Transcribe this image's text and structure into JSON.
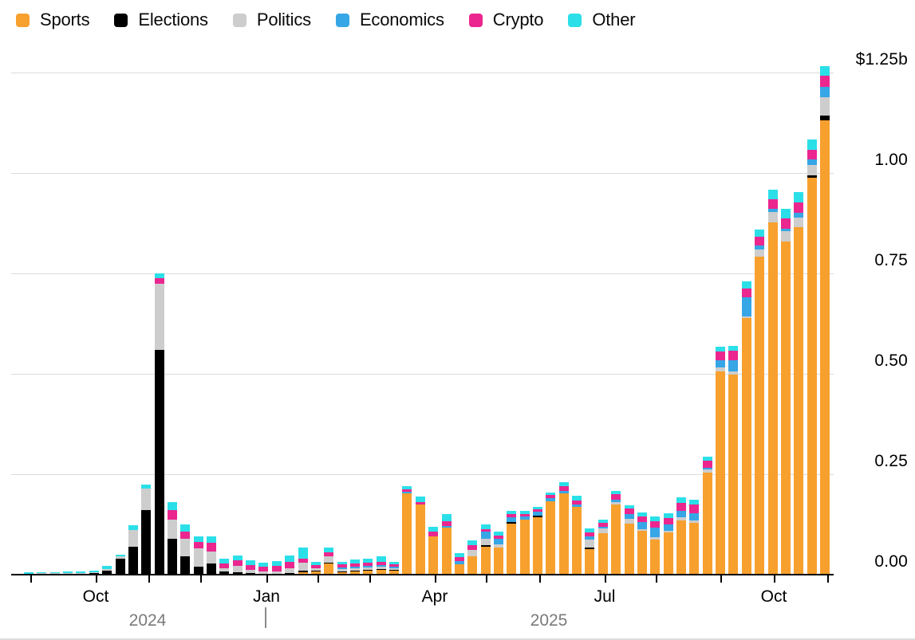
{
  "legend": {
    "items": [
      {
        "label": "Sports",
        "color": "#f7a02e"
      },
      {
        "label": "Elections",
        "color": "#000000"
      },
      {
        "label": "Politics",
        "color": "#cdcdcd"
      },
      {
        "label": "Economics",
        "color": "#36a6e6"
      },
      {
        "label": "Crypto",
        "color": "#ec268f"
      },
      {
        "label": "Other",
        "color": "#2bdfe8"
      }
    ]
  },
  "y_axis": {
    "tick_labels": [
      "$1.25b",
      "1.00",
      "0.75",
      "0.50",
      "0.25",
      "0.00"
    ]
  },
  "x_axis": {
    "month_labels": [
      "Oct",
      "Jan",
      "Apr",
      "Jul",
      "Oct"
    ],
    "year_labels": [
      "2024",
      "2025"
    ],
    "separator": "|"
  },
  "chart_data": {
    "type": "bar",
    "stacked": true,
    "bar_period": "weekly",
    "weeks": 62,
    "x_range": [
      "early Sep 2024",
      "early Nov 2025"
    ],
    "values_unit": "USD millions",
    "ylim_billions": [
      0,
      1.25
    ],
    "ytick_values_billions": [
      0,
      0.25,
      0.5,
      0.75,
      1.0,
      1.25
    ],
    "grid": true,
    "legend_position": "top-left",
    "series": [
      {
        "name": "Sports",
        "color": "#f7a02e",
        "values": [
          0,
          0,
          0,
          0,
          0,
          0,
          0,
          0,
          0,
          0,
          0,
          0,
          0,
          0,
          0,
          0,
          0,
          0,
          0,
          0,
          0,
          6,
          8,
          28,
          6,
          8,
          10,
          12,
          10,
          202,
          175,
          95,
          117,
          26,
          46,
          69,
          67,
          127,
          137,
          143,
          183,
          202,
          169,
          63,
          103,
          175,
          127,
          109,
          87,
          105,
          135,
          129,
          254,
          506,
          498,
          639,
          792,
          877,
          829,
          866,
          988,
          1131
        ]
      },
      {
        "name": "Elections",
        "color": "#000000",
        "values": [
          2,
          2,
          2,
          3,
          3,
          4,
          10,
          40,
          70,
          160,
          560,
          89,
          45,
          20,
          28,
          8,
          6,
          4,
          2,
          2,
          4,
          4,
          2,
          2,
          2,
          2,
          2,
          2,
          2,
          0,
          0,
          0,
          0,
          0,
          0,
          4,
          0,
          4,
          0,
          4,
          0,
          0,
          0,
          4,
          0,
          0,
          0,
          0,
          0,
          0,
          0,
          0,
          0,
          0,
          0,
          0,
          0,
          0,
          0,
          0,
          6,
          12
        ]
      },
      {
        "name": "Politics",
        "color": "#cdcdcd",
        "values": [
          0,
          1,
          1,
          1,
          1,
          1,
          4,
          5,
          42,
          55,
          165,
          48,
          45,
          46,
          30,
          8,
          16,
          8,
          6,
          6,
          12,
          20,
          6,
          16,
          6,
          6,
          6,
          6,
          4,
          0,
          0,
          0,
          0,
          0,
          16,
          16,
          8,
          0,
          0,
          0,
          0,
          0,
          0,
          20,
          12,
          5,
          12,
          4,
          6,
          4,
          8,
          6,
          8,
          10,
          8,
          4,
          18,
          26,
          26,
          22,
          26,
          46
        ]
      },
      {
        "name": "Economics",
        "color": "#36a6e6",
        "values": [
          0,
          0,
          0,
          0,
          0,
          0,
          0,
          0,
          0,
          0,
          0,
          0,
          0,
          0,
          0,
          0,
          0,
          0,
          0,
          0,
          0,
          0,
          0,
          0,
          4,
          4,
          4,
          4,
          4,
          4,
          0,
          0,
          4,
          8,
          0,
          18,
          14,
          12,
          8,
          10,
          8,
          6,
          6,
          8,
          4,
          6,
          12,
          18,
          24,
          16,
          16,
          18,
          4,
          18,
          28,
          48,
          10,
          8,
          6,
          12,
          14,
          26
        ]
      },
      {
        "name": "Crypto",
        "color": "#ec268f",
        "values": [
          0,
          0,
          0,
          0,
          0,
          0,
          0,
          0,
          0,
          0,
          13,
          24,
          18,
          16,
          22,
          12,
          14,
          12,
          11,
          13,
          16,
          10,
          8,
          10,
          8,
          8,
          8,
          8,
          6,
          6,
          6,
          12,
          12,
          10,
          12,
          6,
          8,
          8,
          6,
          6,
          7,
          12,
          10,
          10,
          10,
          14,
          14,
          14,
          16,
          16,
          20,
          22,
          18,
          22,
          24,
          22,
          22,
          24,
          26,
          26,
          24,
          28
        ]
      },
      {
        "name": "Other",
        "color": "#2bdfe8",
        "values": [
          3,
          3,
          3,
          4,
          4,
          4,
          8,
          5,
          11,
          10,
          12,
          20,
          17,
          14,
          16,
          12,
          12,
          12,
          11,
          13,
          16,
          28,
          8,
          12,
          6,
          10,
          10,
          14,
          6,
          8,
          14,
          12,
          18,
          10,
          11,
          12,
          10,
          8,
          8,
          6,
          6,
          10,
          11,
          10,
          8,
          8,
          8,
          10,
          12,
          12,
          13,
          11,
          10,
          11,
          12,
          18,
          18,
          24,
          24,
          26,
          26,
          22
        ]
      }
    ]
  }
}
